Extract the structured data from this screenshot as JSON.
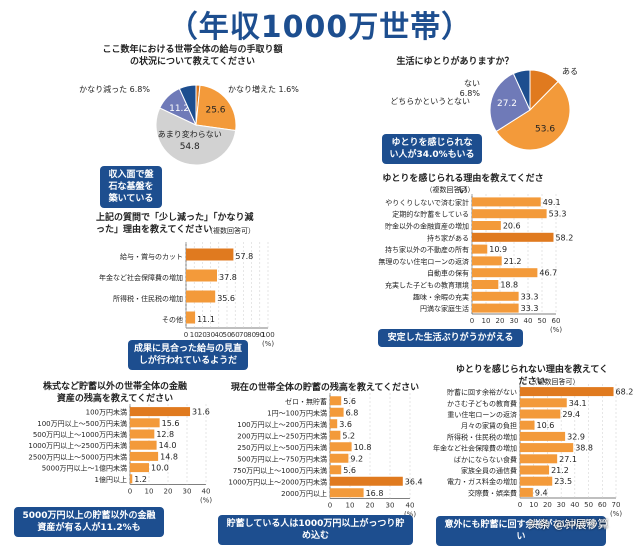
{
  "page": {
    "title": "（年収1000万世帯）",
    "colors": {
      "orange": "#f39a3a",
      "navy": "#1d4e8f",
      "purple": "#6f7ab8",
      "gray": "#d2d2d2",
      "orange_dark": "#e07a1f"
    }
  },
  "watermark": "头条 @钟展秒算",
  "chart_data": [
    {
      "id": "income-trend",
      "type": "pie",
      "title": "ここ数年における世帯全体の給与の手取り額の状況について教えてください",
      "slices": [
        {
          "label": "かなり増えた",
          "value": 1.6,
          "color": "#e07a1f"
        },
        {
          "label": "少し増えた",
          "value": 25.6,
          "color": "#f39a3a"
        },
        {
          "label": "あまり変わらない",
          "value": 54.8,
          "color": "#d2d2d2"
        },
        {
          "label": "少し減った",
          "value": 11.2,
          "color": "#6f7ab8"
        },
        {
          "label": "かなり減った",
          "value": 6.8,
          "color": "#1d4e8f"
        }
      ],
      "callout": "収入面で盤石な基盤を築いている"
    },
    {
      "id": "leeway",
      "type": "pie",
      "title": "生活にゆとりがありますか？",
      "slices": [
        {
          "label": "ある",
          "value": 12.4,
          "color": "#e07a1f"
        },
        {
          "label": "どちらかというとある",
          "value": 53.6,
          "color": "#f39a3a"
        },
        {
          "label": "どちらかというとない",
          "value": 27.2,
          "color": "#6f7ab8"
        },
        {
          "label": "ない",
          "value": 6.8,
          "color": "#1d4e8f"
        }
      ],
      "callout": "ゆとりを感じられない人が34.0%もいる"
    },
    {
      "id": "decrease-reasons",
      "type": "bar",
      "title": "上記の質問で「少し減った」「かなり減った」理由を教えてください",
      "note": "（複数回答可）",
      "categories": [
        "給与・賞与のカット",
        "年金など社会保障費の増加",
        "所得税・住民税の増加",
        "その他"
      ],
      "values": [
        57.8,
        37.8,
        35.6,
        11.1
      ],
      "xlim": [
        0,
        100
      ],
      "ticks": [
        0,
        10,
        20,
        30,
        40,
        50,
        60,
        70,
        80,
        90,
        100
      ],
      "unit": "(%)",
      "callout": "成果に見合った給与の見直しが行われているようだ"
    },
    {
      "id": "leeway-reasons",
      "type": "bar",
      "title": "ゆとりを感じられる理由を教えてください",
      "note": "（複数回答可）",
      "categories": [
        "やりくりしないで済む家計",
        "定期的な貯蓄をしている",
        "貯金以外の金融資産の増加",
        "持ち家がある",
        "持ち家以外の不動産の所有",
        "無理のない住宅ローンの返済",
        "自動車の保有",
        "充実した子どもの教育環境",
        "趣味・余暇の充実",
        "円満な家庭生活"
      ],
      "values": [
        49.1,
        53.3,
        20.6,
        58.2,
        10.9,
        21.2,
        46.7,
        18.8,
        33.3,
        33.3
      ],
      "xlim": [
        0,
        60
      ],
      "ticks": [
        0,
        10,
        20,
        30,
        40,
        50,
        60
      ],
      "unit": "(%)",
      "callout": "安定した生活ぶりがうかがえる"
    },
    {
      "id": "financial-assets",
      "type": "bar",
      "title": "株式など貯蓄以外の世帯全体の金融資産の残高を教えてください",
      "categories": [
        "100万円未満",
        "100万円以上～500万円未満",
        "500万円以上～1000万円未満",
        "1000万円以上～2500万円未満",
        "2500万円以上～5000万円未満",
        "5000万円以上～1億円未満",
        "1億円以上"
      ],
      "values": [
        31.6,
        15.6,
        12.8,
        14.0,
        14.8,
        10.0,
        1.2
      ],
      "xlim": [
        0,
        40
      ],
      "ticks": [
        0,
        10,
        20,
        30,
        40
      ],
      "unit": "(%)",
      "callout": "5000万円以上の貯蓄以外の金融資産が有る人が11.2%も"
    },
    {
      "id": "savings",
      "type": "bar",
      "title": "現在の世帯全体の貯蓄の残高を教えてください",
      "categories": [
        "ゼロ・無貯蓄",
        "1円～100万円未満",
        "100万円以上～200万円未満",
        "200万円以上～250万円未満",
        "250万円以上～500万円未満",
        "500万円以上～750万円未満",
        "750万円以上～1000万円未満",
        "1000万円以上～2000万円未満",
        "2000万円以上"
      ],
      "values": [
        5.6,
        6.8,
        3.6,
        5.2,
        10.8,
        9.2,
        5.6,
        36.4,
        16.8
      ],
      "xlim": [
        0,
        40
      ],
      "ticks": [
        0,
        10,
        20,
        30,
        40
      ],
      "unit": "(%)",
      "callout": "貯蓄している人は1000万円以上がっつり貯め込む"
    },
    {
      "id": "no-leeway-reasons",
      "type": "bar",
      "title": "ゆとりを感じられない理由を教えてください",
      "note": "（複数回答可）",
      "categories": [
        "貯蓄に回す余裕がない",
        "かさむ子どもの教育費",
        "重い住宅ローンの返済",
        "月々の家賃の負担",
        "所得税・住民税の増加",
        "年金など社会保障費の増加",
        "ばかにならない食費",
        "家族全員の通信費",
        "電力・ガス料金の増加",
        "交際費・娯楽費"
      ],
      "values": [
        68.2,
        34.1,
        29.4,
        10.6,
        32.9,
        38.8,
        27.1,
        21.2,
        23.5,
        9.4
      ],
      "xlim": [
        0,
        70
      ],
      "ticks": [
        0,
        10,
        20,
        30,
        40,
        50,
        60,
        70
      ],
      "unit": "(%)",
      "callout": "意外にも貯蓄に回す余裕がない人が多い"
    }
  ]
}
